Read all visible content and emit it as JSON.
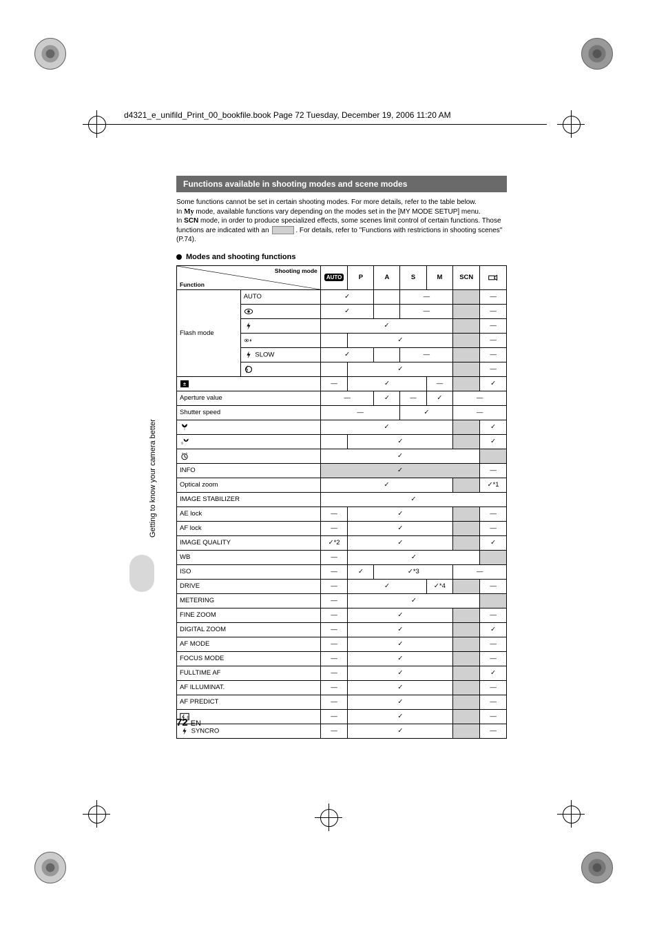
{
  "meta": {
    "header_line": "d4321_e_unifild_Print_00_bookfile.book  Page 72  Tuesday, December 19, 2006  11:20 AM"
  },
  "section": {
    "title": "Functions available in shooting modes and scene modes",
    "intro_1": "Some functions cannot be set in certain shooting modes. For more details, refer to the table below.",
    "intro_2a": "In ",
    "intro_2_mymode": "r",
    "intro_2b": " mode, available functions vary depending on the modes set in the [MY MODE SETUP] menu.",
    "intro_3a": "In ",
    "intro_3_scn": "SCN",
    "intro_3b": " mode, in order to produce specialized effects, some scenes limit control of certain functions. Those functions are indicated with an ",
    "intro_3c": ". For details, refer to \"Functions with restrictions in shooting scenes\" (P.74).",
    "sub_header": "Modes and shooting functions"
  },
  "sidebar": {
    "text": "Getting to know your camera better"
  },
  "page": {
    "number": "72",
    "lang": "EN"
  },
  "table": {
    "diag_shoot": "Shooting mode",
    "diag_func": "Function",
    "mode_cols": [
      "AUTO",
      "P",
      "A",
      "S",
      "M",
      "SCN",
      "movie"
    ],
    "rows": [
      {
        "l1": "Flash mode",
        "l2": "AUTO",
        "cells": [
          {
            "t": "✓",
            "s": 2
          },
          {
            "t": ""
          },
          {
            "t": "—",
            "s": 2
          },
          {
            "t": "",
            "sh": 1
          },
          {
            "t": "—"
          }
        ],
        "row_of": 6
      },
      {
        "l2": "redeye",
        "icon": "redeye",
        "cells": [
          {
            "t": "✓",
            "s": 2
          },
          {
            "t": ""
          },
          {
            "t": "—",
            "s": 2
          },
          {
            "t": "",
            "sh": 1
          },
          {
            "t": "—"
          }
        ]
      },
      {
        "l2": "fill",
        "icon": "fill",
        "cells": [
          {
            "t": "✓",
            "s": 5
          },
          {
            "t": "",
            "sh": 1
          },
          {
            "t": "—"
          }
        ]
      },
      {
        "l2": "redeye-fill",
        "icon": "redeye-fill",
        "cells": [
          {
            "t": ""
          },
          {
            "t": "✓",
            "s": 4
          },
          {
            "t": "",
            "sh": 1
          },
          {
            "t": "—"
          }
        ]
      },
      {
        "l2": "slow",
        "icon": "slow",
        "label": "SLOW",
        "cells": [
          {
            "t": "✓",
            "s": 2
          },
          {
            "t": ""
          },
          {
            "t": "—",
            "s": 2
          },
          {
            "t": "",
            "sh": 1
          },
          {
            "t": "—"
          }
        ]
      },
      {
        "l2": "off",
        "icon": "off",
        "cells": [
          {
            "t": ""
          },
          {
            "t": "✓",
            "s": 4
          },
          {
            "t": "",
            "sh": 1
          },
          {
            "t": "—"
          }
        ]
      },
      {
        "l1": "exp-comp",
        "icon": "expcomp",
        "full": 1,
        "cells": [
          {
            "t": "—"
          },
          {
            "t": "✓",
            "s": 3
          },
          {
            "t": "—"
          },
          {
            "t": "",
            "sh": 1
          },
          {
            "t": "✓"
          }
        ]
      },
      {
        "l1": "Aperture value",
        "full": 1,
        "cells": [
          {
            "t": "—",
            "s": 2
          },
          {
            "t": "✓"
          },
          {
            "t": "—"
          },
          {
            "t": "✓"
          },
          {
            "t": "—",
            "s": 2
          }
        ]
      },
      {
        "l1": "Shutter speed",
        "full": 1,
        "cells": [
          {
            "t": "—",
            "s": 3
          },
          {
            "t": "✓",
            "s": 2
          },
          {
            "t": "—",
            "s": 2
          }
        ]
      },
      {
        "l1": "macro",
        "icon": "macro",
        "full": 1,
        "cells": [
          {
            "t": "✓",
            "s": 5
          },
          {
            "t": "",
            "sh": 1
          },
          {
            "t": "✓"
          }
        ]
      },
      {
        "l1": "super-macro",
        "icon": "smacro",
        "full": 1,
        "cells": [
          {
            "t": ""
          },
          {
            "t": "✓",
            "s": 4
          },
          {
            "t": "",
            "sh": 1
          },
          {
            "t": "✓"
          }
        ]
      },
      {
        "l1": "self-timer",
        "icon": "timer",
        "full": 1,
        "cells": [
          {
            "t": "✓",
            "s": 6
          },
          {
            "t": "",
            "sh": 1
          }
        ]
      },
      {
        "l1": "INFO",
        "full": 1,
        "cells": [
          {
            "t": "✓",
            "s": 6,
            "sh": 1
          },
          {
            "t": "—"
          }
        ]
      },
      {
        "l1": "Optical zoom",
        "full": 1,
        "cells": [
          {
            "t": "✓",
            "s": 5
          },
          {
            "t": "",
            "sh": 1
          },
          {
            "t": "✓*1"
          }
        ]
      },
      {
        "l1": "IMAGE STABILIZER",
        "full": 1,
        "cells": [
          {
            "t": "✓",
            "s": 7
          }
        ]
      },
      {
        "l1": "AE lock",
        "full": 1,
        "cells": [
          {
            "t": "—"
          },
          {
            "t": "✓",
            "s": 4
          },
          {
            "t": "",
            "sh": 1
          },
          {
            "t": "—"
          }
        ]
      },
      {
        "l1": "AF lock",
        "full": 1,
        "cells": [
          {
            "t": "—"
          },
          {
            "t": "✓",
            "s": 4
          },
          {
            "t": "",
            "sh": 1
          },
          {
            "t": "—"
          }
        ]
      },
      {
        "l1": "IMAGE QUALITY",
        "full": 1,
        "cells": [
          {
            "t": "✓*2"
          },
          {
            "t": "✓",
            "s": 4
          },
          {
            "t": "",
            "sh": 1
          },
          {
            "t": "✓"
          }
        ]
      },
      {
        "l1": "WB",
        "full": 1,
        "cells": [
          {
            "t": "—"
          },
          {
            "t": "✓",
            "s": 5
          },
          {
            "t": "",
            "sh": 1
          }
        ]
      },
      {
        "l1": "ISO",
        "full": 1,
        "cells": [
          {
            "t": "—"
          },
          {
            "t": "✓"
          },
          {
            "t": "✓*3",
            "s": 3
          },
          {
            "t": "—",
            "s": 2
          }
        ]
      },
      {
        "l1": "DRIVE",
        "full": 1,
        "cells": [
          {
            "t": "—"
          },
          {
            "t": "✓",
            "s": 3
          },
          {
            "t": "✓*4"
          },
          {
            "t": "",
            "sh": 1
          },
          {
            "t": "—"
          }
        ]
      },
      {
        "l1": "METERING",
        "full": 1,
        "cells": [
          {
            "t": "—"
          },
          {
            "t": "✓",
            "s": 5
          },
          {
            "t": "",
            "sh": 1
          }
        ]
      },
      {
        "l1": "FINE ZOOM",
        "full": 1,
        "cells": [
          {
            "t": "—"
          },
          {
            "t": "✓",
            "s": 4
          },
          {
            "t": "",
            "sh": 1
          },
          {
            "t": "—"
          }
        ]
      },
      {
        "l1": "DIGITAL ZOOM",
        "full": 1,
        "cells": [
          {
            "t": "—"
          },
          {
            "t": "✓",
            "s": 4
          },
          {
            "t": "",
            "sh": 1
          },
          {
            "t": "✓"
          }
        ]
      },
      {
        "l1": "AF MODE",
        "full": 1,
        "cells": [
          {
            "t": "—"
          },
          {
            "t": "✓",
            "s": 4
          },
          {
            "t": "",
            "sh": 1
          },
          {
            "t": "—"
          }
        ]
      },
      {
        "l1": "FOCUS MODE",
        "full": 1,
        "cells": [
          {
            "t": "—"
          },
          {
            "t": "✓",
            "s": 4
          },
          {
            "t": "",
            "sh": 1
          },
          {
            "t": "—"
          }
        ]
      },
      {
        "l1": "FULLTIME AF",
        "full": 1,
        "cells": [
          {
            "t": "—"
          },
          {
            "t": "✓",
            "s": 4
          },
          {
            "t": "",
            "sh": 1
          },
          {
            "t": "✓"
          }
        ]
      },
      {
        "l1": "AF ILLUMINAT.",
        "full": 1,
        "cells": [
          {
            "t": "—"
          },
          {
            "t": "✓",
            "s": 4
          },
          {
            "t": "",
            "sh": 1
          },
          {
            "t": "—"
          }
        ]
      },
      {
        "l1": "AF PREDICT",
        "full": 1,
        "cells": [
          {
            "t": "—"
          },
          {
            "t": "✓",
            "s": 4
          },
          {
            "t": "",
            "sh": 1
          },
          {
            "t": "—"
          }
        ]
      },
      {
        "l1": "flash-intensity",
        "icon": "flashint",
        "full": 1,
        "cells": [
          {
            "t": "—"
          },
          {
            "t": "✓",
            "s": 4
          },
          {
            "t": "",
            "sh": 1
          },
          {
            "t": "—"
          }
        ]
      },
      {
        "l1": "sync",
        "icon": "flash",
        "label": "SYNCRO",
        "full": 1,
        "cells": [
          {
            "t": "—"
          },
          {
            "t": "✓",
            "s": 4
          },
          {
            "t": "",
            "sh": 1
          },
          {
            "t": "—"
          }
        ]
      }
    ]
  }
}
